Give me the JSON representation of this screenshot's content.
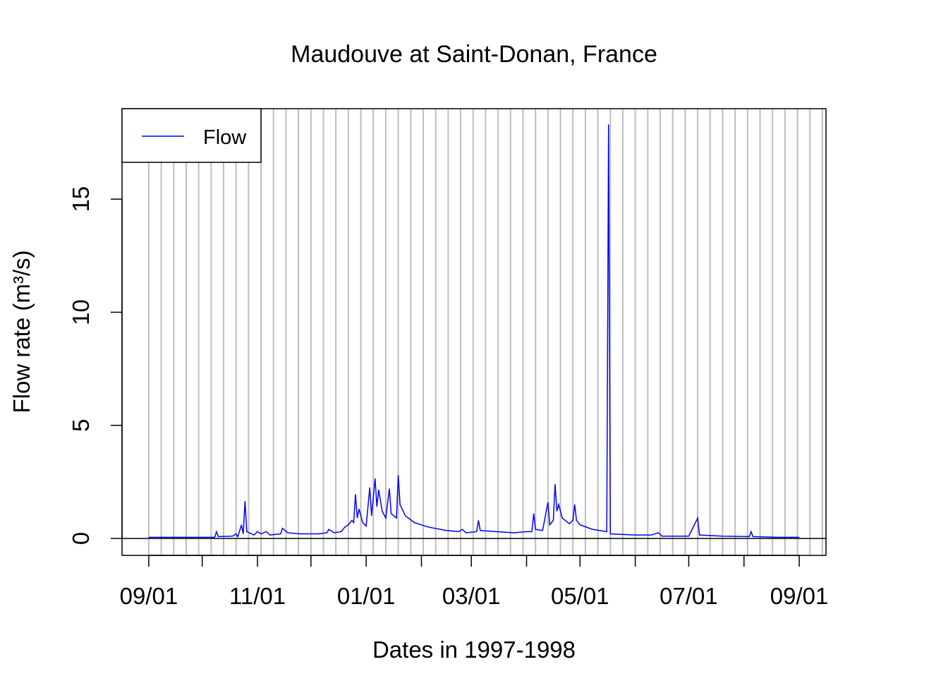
{
  "chart_data": {
    "type": "line",
    "title": "Maudouve at Saint-Donan, France",
    "x_label": "Dates in 1997-1998",
    "y_label": "Flow rate (m³/s)",
    "xlim": [
      "1997-08-17",
      "1998-09-16"
    ],
    "ylim": [
      -0.75,
      19
    ],
    "xticks": [
      {
        "value": "1997-09-01",
        "label": "09/01"
      },
      {
        "value": "1997-10-01",
        "label": null
      },
      {
        "value": "1997-11-01",
        "label": "11/01"
      },
      {
        "value": "1997-12-01",
        "label": null
      },
      {
        "value": "1998-01-01",
        "label": "01/01"
      },
      {
        "value": "1998-02-01",
        "label": null
      },
      {
        "value": "1998-03-01",
        "label": "03/01"
      },
      {
        "value": "1998-04-01",
        "label": null
      },
      {
        "value": "1998-05-01",
        "label": "05/01"
      },
      {
        "value": "1998-06-01",
        "label": null
      },
      {
        "value": "1998-07-01",
        "label": "07/01"
      },
      {
        "value": "1998-08-01",
        "label": null
      },
      {
        "value": "1998-09-01",
        "label": "09/01"
      }
    ],
    "yticks": [
      0,
      5,
      10,
      15
    ],
    "grid_x_every_days": 7,
    "grid_x_from": "1997-09-01",
    "grid_color": "#bebebe",
    "zero_line": true,
    "legend": "top-left",
    "x": [
      "1997-09-01",
      "1997-09-15",
      "1997-10-01",
      "1997-10-08",
      "1997-10-09",
      "1997-10-10",
      "1997-10-18",
      "1997-10-20",
      "1997-10-21",
      "1997-10-23",
      "1997-10-24",
      "1997-10-25",
      "1997-10-26",
      "1997-10-30",
      "1997-11-01",
      "1997-11-03",
      "1997-11-06",
      "1997-11-08",
      "1997-11-14",
      "1997-11-15",
      "1997-11-18",
      "1997-11-25",
      "1997-12-05",
      "1997-12-10",
      "1997-12-11",
      "1997-12-14",
      "1997-12-18",
      "1997-12-20",
      "1997-12-22",
      "1997-12-24",
      "1997-12-25",
      "1997-12-26",
      "1997-12-27",
      "1997-12-28",
      "1997-12-30",
      "1998-01-01",
      "1998-01-03",
      "1998-01-04",
      "1998-01-06",
      "1998-01-07",
      "1998-01-08",
      "1998-01-10",
      "1998-01-12",
      "1998-01-14",
      "1998-01-15",
      "1998-01-18",
      "1998-01-19",
      "1998-01-20",
      "1998-01-23",
      "1998-01-28",
      "1998-02-05",
      "1998-02-15",
      "1998-02-22",
      "1998-02-24",
      "1998-02-26",
      "1998-03-04",
      "1998-03-05",
      "1998-03-06",
      "1998-03-15",
      "1998-03-25",
      "1998-04-01",
      "1998-04-04",
      "1998-04-05",
      "1998-04-06",
      "1998-04-10",
      "1998-04-13",
      "1998-04-14",
      "1998-04-16",
      "1998-04-17",
      "1998-04-18",
      "1998-04-19",
      "1998-04-21",
      "1998-04-25",
      "1998-04-27",
      "1998-04-28",
      "1998-04-29",
      "1998-05-01",
      "1998-05-08",
      "1998-05-16",
      "1998-05-17",
      "1998-05-18",
      "1998-06-01",
      "1998-06-10",
      "1998-06-14",
      "1998-06-16",
      "1998-07-01",
      "1998-07-06",
      "1998-07-07",
      "1998-07-20",
      "1998-08-04",
      "1998-08-05",
      "1998-08-06",
      "1998-08-20",
      "1998-09-01"
    ],
    "series": [
      {
        "name": "Flow",
        "color": "#0000ff",
        "values": [
          0.05,
          0.05,
          0.05,
          0.05,
          0.3,
          0.08,
          0.1,
          0.2,
          0.08,
          0.6,
          0.2,
          1.65,
          0.3,
          0.15,
          0.3,
          0.2,
          0.3,
          0.15,
          0.2,
          0.45,
          0.25,
          0.2,
          0.2,
          0.25,
          0.4,
          0.25,
          0.3,
          0.5,
          0.6,
          0.8,
          0.7,
          1.95,
          0.9,
          1.3,
          0.7,
          0.55,
          2.25,
          1.0,
          2.65,
          1.4,
          2.15,
          1.2,
          0.9,
          2.2,
          1.1,
          0.9,
          2.8,
          1.5,
          1.0,
          0.7,
          0.5,
          0.35,
          0.3,
          0.4,
          0.25,
          0.3,
          0.8,
          0.35,
          0.3,
          0.25,
          0.3,
          0.3,
          1.1,
          0.4,
          0.35,
          1.6,
          0.6,
          0.8,
          2.4,
          1.2,
          1.5,
          0.9,
          0.65,
          0.8,
          1.5,
          0.8,
          0.6,
          0.4,
          0.3,
          18.3,
          0.2,
          0.15,
          0.15,
          0.25,
          0.1,
          0.1,
          0.9,
          0.15,
          0.1,
          0.08,
          0.3,
          0.08,
          0.05,
          0.05
        ]
      }
    ]
  }
}
